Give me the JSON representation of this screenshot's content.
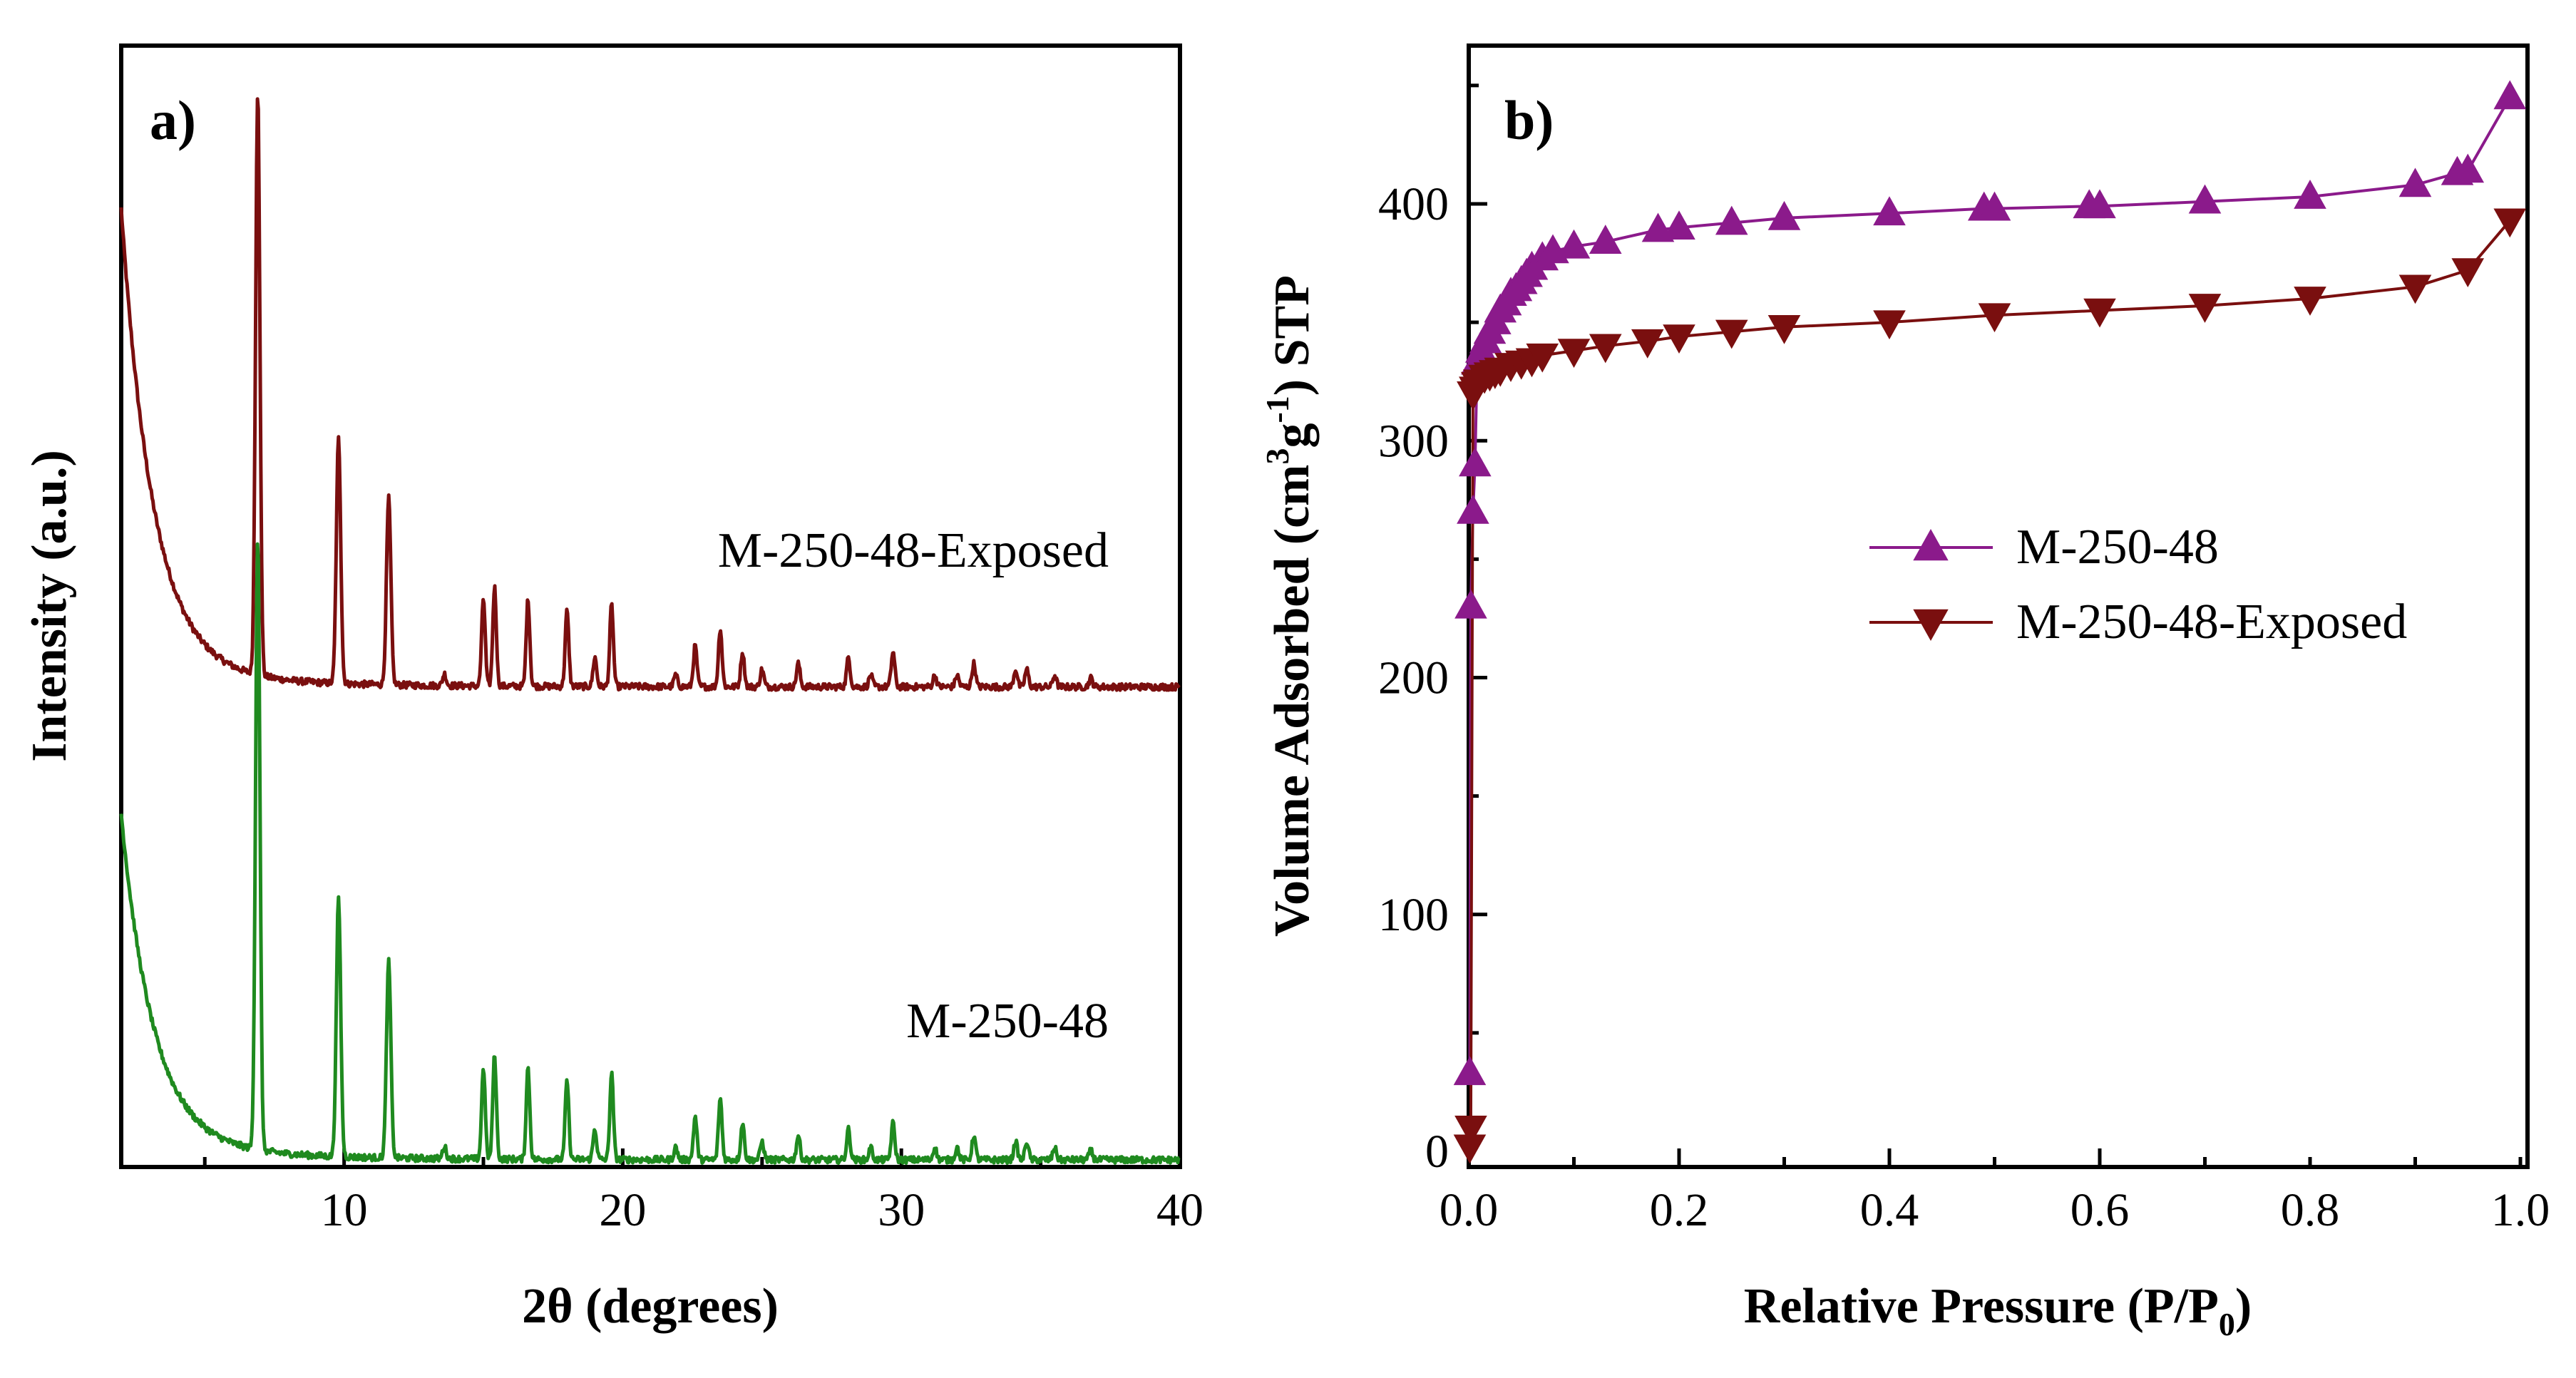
{
  "colors": {
    "purple": "#8b1a8b",
    "darkred": "#7a0f0f",
    "green": "#1f8a1f",
    "axis": "#000000"
  },
  "chart_data": [
    {
      "type": "line",
      "panel_label": "a)",
      "xlabel": "2θ (degrees)",
      "ylabel": "Intensity (a.u.)",
      "xlim": [
        2,
        40
      ],
      "x_ticks": [
        10,
        20,
        30,
        40
      ],
      "x_tick_labels": [
        "10",
        "20",
        "30",
        "40"
      ],
      "y_ticks_shown": false,
      "peaks": [
        {
          "x": 6.9,
          "h": 1.0
        },
        {
          "x": 9.8,
          "h": 0.42
        },
        {
          "x": 11.6,
          "h": 0.32
        },
        {
          "x": 13.6,
          "h": 0.02
        },
        {
          "x": 15.0,
          "h": 0.15
        },
        {
          "x": 15.4,
          "h": 0.17
        },
        {
          "x": 16.6,
          "h": 0.15
        },
        {
          "x": 18.0,
          "h": 0.13
        },
        {
          "x": 19.0,
          "h": 0.05
        },
        {
          "x": 19.6,
          "h": 0.14
        },
        {
          "x": 21.9,
          "h": 0.02
        },
        {
          "x": 22.6,
          "h": 0.07
        },
        {
          "x": 23.5,
          "h": 0.1
        },
        {
          "x": 24.3,
          "h": 0.06
        },
        {
          "x": 25.0,
          "h": 0.03
        },
        {
          "x": 26.3,
          "h": 0.04
        },
        {
          "x": 28.1,
          "h": 0.05
        },
        {
          "x": 28.9,
          "h": 0.02
        },
        {
          "x": 29.7,
          "h": 0.06
        },
        {
          "x": 31.2,
          "h": 0.02
        },
        {
          "x": 32.0,
          "h": 0.02
        },
        {
          "x": 32.6,
          "h": 0.04
        },
        {
          "x": 34.1,
          "h": 0.03
        },
        {
          "x": 34.5,
          "h": 0.03
        },
        {
          "x": 35.5,
          "h": 0.02
        },
        {
          "x": 36.8,
          "h": 0.015
        }
      ],
      "series": [
        {
          "name": "M-250-48-Exposed",
          "color": "#7a0f0f",
          "baseline": 0.43,
          "background": 0.42,
          "scale": 1.0
        },
        {
          "name": "M-250-48",
          "color": "#1f8a1f",
          "baseline": 0.0,
          "background": 0.3,
          "scale": 1.05
        }
      ]
    },
    {
      "type": "scatter-line",
      "panel_label": "b)",
      "xlabel": "Relative Pressure (P/P",
      "xlabel_sub": "0",
      "xlabel_end": ")",
      "ylabel": "Volume Adsorbed  (cm",
      "ylabel_sup1": "3",
      "ylabel_mid": "g",
      "ylabel_sup2": "-1",
      "ylabel_end": ") STP",
      "xlim": [
        0.0,
        1.0
      ],
      "ylim": [
        0,
        450
      ],
      "x_ticks": [
        0.0,
        0.2,
        0.4,
        0.6,
        0.8,
        1.0
      ],
      "x_tick_labels": [
        "0.0",
        "0.2",
        "0.4",
        "0.6",
        "0.8",
        "1.0"
      ],
      "y_ticks": [
        0,
        100,
        200,
        300,
        400
      ],
      "y_tick_labels": [
        "0",
        "100",
        "200",
        "300",
        "400"
      ],
      "legend": [
        {
          "label": "M-250-48",
          "marker": "triangle-up",
          "color": "#8b1a8b"
        },
        {
          "label": "M-250-48-Exposed",
          "marker": "triangle-down",
          "color": "#7a0f0f"
        }
      ],
      "series": [
        {
          "name": "M-250-48",
          "marker": "triangle-up",
          "color": "#8b1a8b",
          "x": [
            0.001,
            0.002,
            0.004,
            0.006,
            0.008,
            0.012,
            0.016,
            0.02,
            0.025,
            0.03,
            0.035,
            0.04,
            0.045,
            0.05,
            0.055,
            0.06,
            0.07,
            0.08,
            0.1,
            0.13,
            0.18,
            0.2,
            0.25,
            0.3,
            0.4,
            0.49,
            0.5,
            0.59,
            0.6,
            0.7,
            0.8,
            0.9,
            0.94,
            0.95,
            0.99
          ],
          "y": [
            33,
            230,
            270,
            290,
            333,
            338,
            342,
            346,
            350,
            355,
            358,
            362,
            364,
            367,
            370,
            373,
            377,
            380,
            382,
            384,
            389,
            390,
            392,
            394,
            396,
            398,
            398,
            399,
            399,
            401,
            403,
            408,
            413,
            414,
            445
          ]
        },
        {
          "name": "M-250-48-Exposed",
          "marker": "triangle-down",
          "color": "#7a0f0f",
          "x": [
            0.001,
            0.002,
            0.004,
            0.006,
            0.008,
            0.01,
            0.015,
            0.02,
            0.025,
            0.03,
            0.04,
            0.05,
            0.06,
            0.07,
            0.1,
            0.13,
            0.17,
            0.2,
            0.25,
            0.3,
            0.4,
            0.5,
            0.6,
            0.7,
            0.8,
            0.9,
            0.95,
            0.99
          ],
          "y": [
            2,
            10,
            320,
            322,
            324,
            325,
            327,
            328,
            329,
            330,
            332,
            333,
            334,
            336,
            338,
            340,
            342,
            344,
            346,
            348,
            350,
            353,
            355,
            357,
            360,
            365,
            372,
            393
          ]
        }
      ]
    }
  ],
  "labels": {
    "panel_a_label": "a)",
    "panel_b_label": "b)",
    "curve_label_exposed": "M-250-48-Exposed",
    "curve_label_fresh": "M-250-48"
  }
}
